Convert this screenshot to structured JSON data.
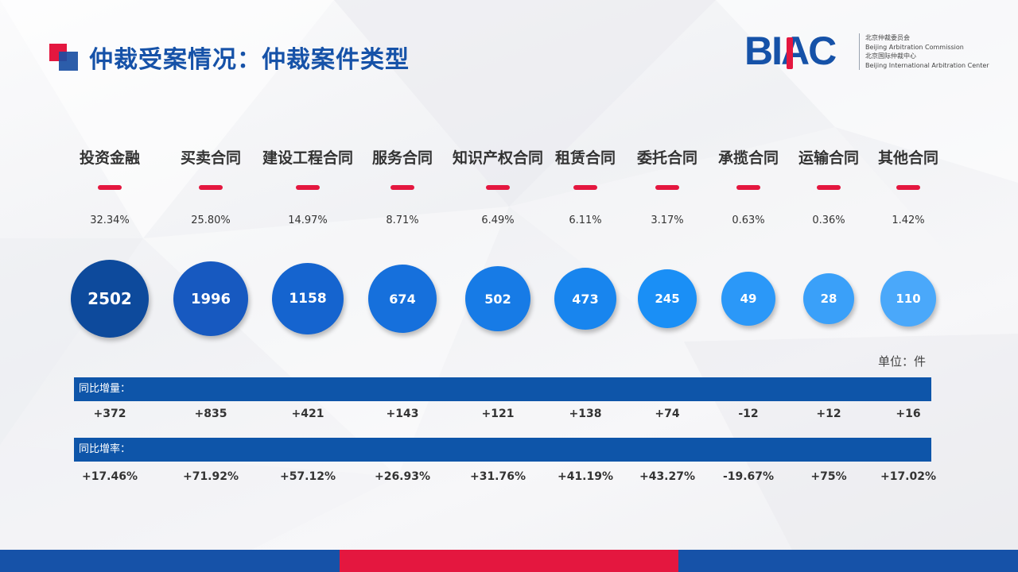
{
  "header": {
    "title": "仲裁受案情况：仲裁案件类型"
  },
  "logo": {
    "wordmark": "BIAC",
    "lines": [
      "北京仲裁委员会",
      "Beijing Arbitration Commission",
      "北京国际仲裁中心",
      "Beijing International Arbitration Center"
    ]
  },
  "categories": [
    {
      "name": "投资金融",
      "share": "32.34%",
      "count": "2502",
      "yoy_change": "+372",
      "yoy_rate": "+17.46%"
    },
    {
      "name": "买卖合同",
      "share": "25.80%",
      "count": "1996",
      "yoy_change": "+835",
      "yoy_rate": "+71.92%"
    },
    {
      "name": "建设工程合同",
      "share": "14.97%",
      "count": "1158",
      "yoy_change": "+421",
      "yoy_rate": "+57.12%"
    },
    {
      "name": "服务合同",
      "share": "8.71%",
      "count": "674",
      "yoy_change": "+143",
      "yoy_rate": "+26.93%"
    },
    {
      "name": "知识产权合同",
      "share": "6.49%",
      "count": "502",
      "yoy_change": "+121",
      "yoy_rate": "+31.76%"
    },
    {
      "name": "租赁合同",
      "share": "6.11%",
      "count": "473",
      "yoy_change": "+138",
      "yoy_rate": "+41.19%"
    },
    {
      "name": "委托合同",
      "share": "3.17%",
      "count": "245",
      "yoy_change": "+74",
      "yoy_rate": "+43.27%"
    },
    {
      "name": "承揽合同",
      "share": "0.63%",
      "count": "49",
      "yoy_change": "-12",
      "yoy_rate": "-19.67%"
    },
    {
      "name": "运输合同",
      "share": "0.36%",
      "count": "28",
      "yoy_change": "+12",
      "yoy_rate": "+75%"
    },
    {
      "name": "其他合同",
      "share": "1.42%",
      "count": "110",
      "yoy_change": "+16",
      "yoy_rate": "+17.02%"
    }
  ],
  "unit_label": "单位：件",
  "rows": {
    "change_label": "同比增量：",
    "rate_label": "同比增率："
  },
  "colors": {
    "brand_blue": "#1652a8",
    "accent_red": "#e4173f",
    "band_blue": "#0e55a9",
    "bubble_gradient": [
      "#0d4a9c",
      "#1759c0",
      "#1564cf",
      "#1670dc",
      "#177be6",
      "#1885ee",
      "#1a8ff6",
      "#2b98f8",
      "#3aa0f9",
      "#4aa8fa"
    ]
  },
  "icons": {
    "title_mark": "overlapping-squares-icon"
  }
}
